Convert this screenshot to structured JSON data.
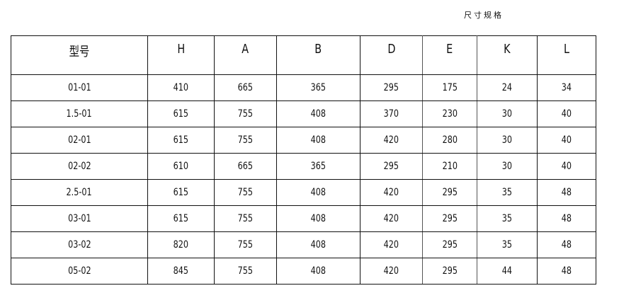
{
  "title": "尺寸规格",
  "table": {
    "headers": [
      "型号",
      "H",
      "A",
      "B",
      "D",
      "E",
      "K",
      "L"
    ],
    "rows": [
      [
        "01-01",
        "410",
        "665",
        "365",
        "295",
        "175",
        "24",
        "34"
      ],
      [
        "1.5-01",
        "615",
        "755",
        "408",
        "370",
        "230",
        "30",
        "40"
      ],
      [
        "02-01",
        "615",
        "755",
        "408",
        "420",
        "280",
        "30",
        "40"
      ],
      [
        "02-02",
        "610",
        "665",
        "365",
        "295",
        "210",
        "30",
        "40"
      ],
      [
        "2.5-01",
        "615",
        "755",
        "408",
        "420",
        "295",
        "35",
        "48"
      ],
      [
        "03-01",
        "615",
        "755",
        "408",
        "420",
        "295",
        "35",
        "48"
      ],
      [
        "03-02",
        "820",
        "755",
        "408",
        "420",
        "295",
        "35",
        "48"
      ],
      [
        "05-02",
        "845",
        "755",
        "408",
        "420",
        "295",
        "44",
        "48"
      ]
    ]
  }
}
